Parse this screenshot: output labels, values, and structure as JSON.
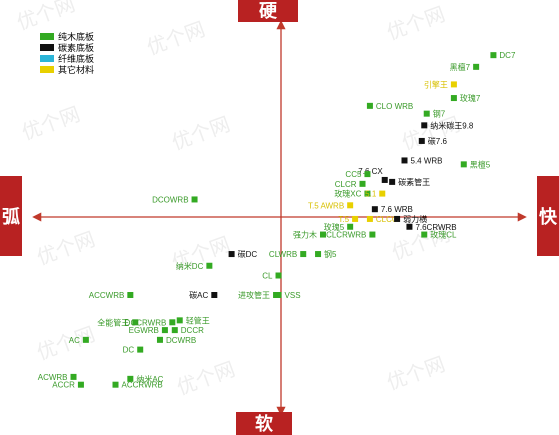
{
  "chart_data": {
    "type": "scatter",
    "axes": {
      "top": "硬",
      "bottom": "软",
      "left": "弧",
      "right": "快"
    },
    "x_range": [
      -1,
      1
    ],
    "y_range": [
      -1,
      1
    ],
    "grid": false,
    "legend_placement": "top-left",
    "watermark": "优个网",
    "colors": {
      "axis": "#c0392b",
      "axis_box": "#b82222",
      "wood": "#33aa22",
      "carbon": "#111111",
      "fiber": "#2bb5d8",
      "other": "#e8d000"
    },
    "legend": [
      {
        "key": "wood",
        "label": "纯木底板"
      },
      {
        "key": "carbon",
        "label": "碳素底板"
      },
      {
        "key": "fiber",
        "label": "纤维底板"
      },
      {
        "key": "other",
        "label": "其它材料"
      }
    ],
    "points": [
      {
        "label": "DC7",
        "type": "wood",
        "x": 0.86,
        "y": 0.83,
        "side": "right"
      },
      {
        "label": "黑檀7",
        "type": "wood",
        "x": 0.79,
        "y": 0.77,
        "side": "left"
      },
      {
        "label": "引擎王",
        "type": "other",
        "x": 0.7,
        "y": 0.68,
        "side": "left"
      },
      {
        "label": "玫瑰7",
        "type": "wood",
        "x": 0.7,
        "y": 0.61,
        "side": "right"
      },
      {
        "label": "CLO WRB",
        "type": "wood",
        "x": 0.36,
        "y": 0.57,
        "side": "right"
      },
      {
        "label": "钢7",
        "type": "wood",
        "x": 0.59,
        "y": 0.53,
        "side": "right"
      },
      {
        "label": "纳米碳王9.8",
        "type": "carbon",
        "x": 0.58,
        "y": 0.47,
        "side": "right"
      },
      {
        "label": "碳7.6",
        "type": "carbon",
        "x": 0.57,
        "y": 0.39,
        "side": "right"
      },
      {
        "label": "5.4 WRB",
        "type": "carbon",
        "x": 0.5,
        "y": 0.29,
        "side": "right"
      },
      {
        "label": "黑檀5",
        "type": "wood",
        "x": 0.74,
        "y": 0.27,
        "side": "right"
      },
      {
        "label": "7.6 CX",
        "type": "carbon",
        "x": 0.42,
        "y": 0.19,
        "side": "top"
      },
      {
        "label": "CC5",
        "type": "wood",
        "x": 0.35,
        "y": 0.22,
        "side": "left"
      },
      {
        "label": "CLCR",
        "type": "wood",
        "x": 0.33,
        "y": 0.17,
        "side": "left"
      },
      {
        "label": "碳素管王",
        "type": "carbon",
        "x": 0.45,
        "y": 0.18,
        "side": "right"
      },
      {
        "label": "玫瑰XC",
        "type": "wood",
        "x": 0.35,
        "y": 0.12,
        "side": "left"
      },
      {
        "label": "5.1",
        "type": "other",
        "x": 0.41,
        "y": 0.12,
        "side": "left"
      },
      {
        "label": "DCOWRB",
        "type": "wood",
        "x": -0.35,
        "y": 0.09,
        "side": "left"
      },
      {
        "label": "T.5 AWRB",
        "type": "other",
        "x": 0.28,
        "y": 0.06,
        "side": "left"
      },
      {
        "label": "7.6 WRB",
        "type": "carbon",
        "x": 0.38,
        "y": 0.04,
        "side": "right"
      },
      {
        "label": "T.5",
        "type": "other",
        "x": 0.3,
        "y": -0.01,
        "side": "left"
      },
      {
        "label": "CLCC",
        "type": "other",
        "x": 0.36,
        "y": -0.01,
        "side": "right"
      },
      {
        "label": "弱力横",
        "type": "carbon",
        "x": 0.47,
        "y": -0.01,
        "side": "right"
      },
      {
        "label": "玫瑰5",
        "type": "wood",
        "x": 0.28,
        "y": -0.05,
        "side": "left"
      },
      {
        "label": "7.6CRWRB",
        "type": "carbon",
        "x": 0.52,
        "y": -0.05,
        "side": "right"
      },
      {
        "label": "强力木",
        "type": "wood",
        "x": 0.17,
        "y": -0.09,
        "side": "left"
      },
      {
        "label": "CLCRWRB",
        "type": "wood",
        "x": 0.37,
        "y": -0.09,
        "side": "left"
      },
      {
        "label": "玫瑰CL",
        "type": "wood",
        "x": 0.58,
        "y": -0.09,
        "side": "right"
      },
      {
        "label": "碳DC",
        "type": "carbon",
        "x": -0.2,
        "y": -0.19,
        "side": "right"
      },
      {
        "label": "CLWRB",
        "type": "wood",
        "x": 0.09,
        "y": -0.19,
        "side": "left"
      },
      {
        "label": "钢5",
        "type": "wood",
        "x": 0.15,
        "y": -0.19,
        "side": "right"
      },
      {
        "label": "纳米DC",
        "type": "wood",
        "x": -0.29,
        "y": -0.25,
        "side": "left"
      },
      {
        "label": "CL",
        "type": "wood",
        "x": -0.01,
        "y": -0.3,
        "side": "left"
      },
      {
        "label": "ACCWRB",
        "type": "wood",
        "x": -0.61,
        "y": -0.4,
        "side": "left"
      },
      {
        "label": "碳AC",
        "type": "carbon",
        "x": -0.27,
        "y": -0.4,
        "side": "left"
      },
      {
        "label": "进攻管王",
        "type": "wood",
        "x": -0.02,
        "y": -0.4,
        "side": "left"
      },
      {
        "label": "VSS",
        "type": "wood",
        "x": -0.01,
        "y": -0.4,
        "side": "right"
      },
      {
        "label": "全能管王",
        "type": "wood",
        "x": -0.59,
        "y": -0.54,
        "side": "left"
      },
      {
        "label": "DCCRWRB",
        "type": "wood",
        "x": -0.44,
        "y": -0.54,
        "side": "left"
      },
      {
        "label": "轻管王",
        "type": "wood",
        "x": -0.41,
        "y": -0.53,
        "side": "right"
      },
      {
        "label": "EGWRB",
        "type": "wood",
        "x": -0.47,
        "y": -0.58,
        "side": "left"
      },
      {
        "label": "DCCR",
        "type": "wood",
        "x": -0.43,
        "y": -0.58,
        "side": "right"
      },
      {
        "label": "AC",
        "type": "wood",
        "x": -0.79,
        "y": -0.63,
        "side": "left"
      },
      {
        "label": "DCWRB",
        "type": "wood",
        "x": -0.49,
        "y": -0.63,
        "side": "right"
      },
      {
        "label": "DC",
        "type": "wood",
        "x": -0.57,
        "y": -0.68,
        "side": "left"
      },
      {
        "label": "ACWRB",
        "type": "wood",
        "x": -0.84,
        "y": -0.82,
        "side": "left"
      },
      {
        "label": "纳米AC",
        "type": "wood",
        "x": -0.61,
        "y": -0.83,
        "side": "right"
      },
      {
        "label": "ACCR",
        "type": "wood",
        "x": -0.81,
        "y": -0.86,
        "side": "left"
      },
      {
        "label": "ACCRWRB",
        "type": "wood",
        "x": -0.67,
        "y": -0.86,
        "side": "right"
      }
    ]
  }
}
